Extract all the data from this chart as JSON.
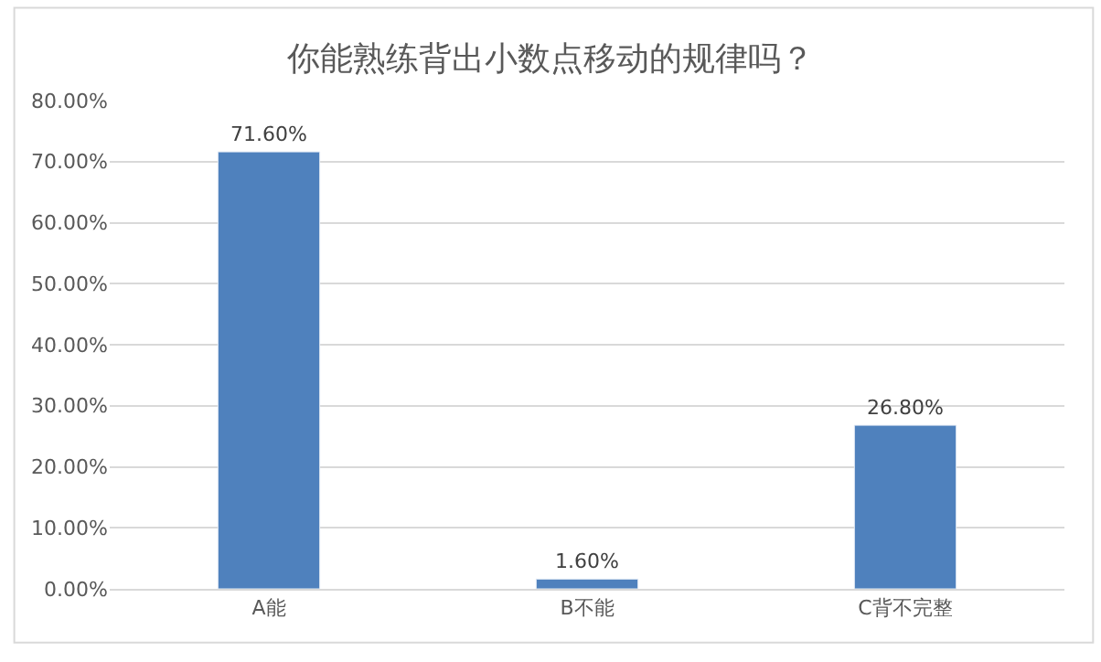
{
  "chart_data": {
    "type": "bar",
    "title": "你能熟练背出小数点移动的规律吗？",
    "categories": [
      "A能",
      "B不能",
      "C背不完整"
    ],
    "series": [
      {
        "color": "#4f81bd",
        "values": [
          71.6,
          1.6,
          26.8
        ],
        "value_labels": [
          "71.60%",
          "1.60%",
          "26.80%"
        ]
      }
    ],
    "ylim": [
      0,
      80
    ],
    "yticks": [
      {
        "value": 0,
        "label": "0.00%"
      },
      {
        "value": 10,
        "label": "10.00%"
      },
      {
        "value": 20,
        "label": "20.00%"
      },
      {
        "value": 30,
        "label": "30.00%"
      },
      {
        "value": 40,
        "label": "40.00%"
      },
      {
        "value": 50,
        "label": "50.00%"
      },
      {
        "value": 60,
        "label": "60.00%"
      },
      {
        "value": 70,
        "label": "70.00%"
      },
      {
        "value": 80,
        "label": "80.00%"
      }
    ],
    "grid": "y"
  }
}
